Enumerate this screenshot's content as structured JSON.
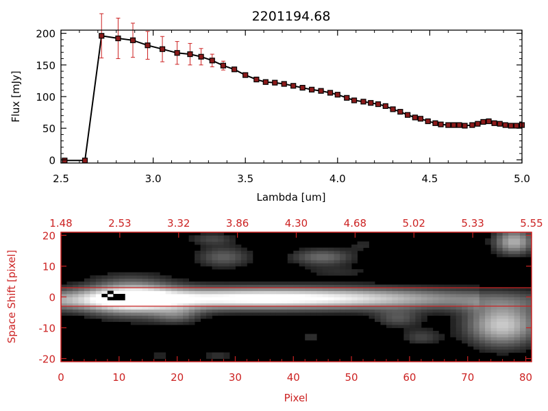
{
  "title": "2201194.68",
  "chart_data": [
    {
      "type": "line",
      "xlabel": "Lambda [um]",
      "ylabel": "Flux [mJy]",
      "xlim": [
        2.5,
        5.0
      ],
      "ylim": [
        -5,
        205
      ],
      "x_ticks": [
        "2.5",
        "3.0",
        "3.5",
        "4.0",
        "4.5",
        "5.0"
      ],
      "y_ticks": [
        "0",
        "50",
        "100",
        "150",
        "200"
      ],
      "grid": false,
      "colors": {
        "line": "#000000",
        "marker": "#8b1a1a",
        "error": "#cc1f1f"
      },
      "series": [
        {
          "x": [
            2.52,
            2.63,
            2.72,
            2.81,
            2.89,
            2.97,
            3.05,
            3.13,
            3.2,
            3.26,
            3.32,
            3.38,
            3.44,
            3.5,
            3.56,
            3.61,
            3.66,
            3.71,
            3.76,
            3.81,
            3.86,
            3.91,
            3.96,
            4.0,
            4.05,
            4.09,
            4.14,
            4.18,
            4.22,
            4.26,
            4.3,
            4.34,
            4.38,
            4.42,
            4.45,
            4.49,
            4.53,
            4.56,
            4.6,
            4.63,
            4.66,
            4.69,
            4.73,
            4.76,
            4.79,
            4.82,
            4.85,
            4.88,
            4.91,
            4.94,
            4.97,
            5.0
          ],
          "y": [
            -1,
            -1,
            196,
            192,
            189,
            181,
            175,
            169,
            167,
            163,
            157,
            149,
            143,
            134,
            127,
            123,
            122,
            120,
            117,
            114,
            111,
            109,
            106,
            103,
            98,
            94,
            92,
            90,
            88,
            85,
            80,
            76,
            71,
            67,
            65,
            61,
            58,
            56,
            55,
            55,
            55,
            54,
            55,
            57,
            60,
            61,
            58,
            57,
            55,
            54,
            54,
            55
          ],
          "err": [
            0,
            0,
            35,
            32,
            27,
            22,
            20,
            18,
            17,
            13,
            10,
            7,
            0,
            0,
            0,
            0,
            0,
            0,
            0,
            0,
            0,
            0,
            0,
            0,
            0,
            0,
            0,
            0,
            0,
            0,
            0,
            0,
            0,
            0,
            0,
            0,
            0,
            0,
            0,
            0,
            0,
            0,
            0,
            0,
            0,
            0,
            0,
            0,
            0,
            0,
            0,
            0
          ]
        }
      ]
    },
    {
      "type": "heatmap",
      "xlabel": "Pixel",
      "ylabel": "Space Shift [pixel]",
      "xlim": [
        0,
        81
      ],
      "ylim": [
        -21,
        21
      ],
      "x_ticks": [
        "0",
        "10",
        "20",
        "30",
        "40",
        "50",
        "60",
        "70",
        "80"
      ],
      "y_ticks": [
        "-20",
        "-10",
        "0",
        "10",
        "20"
      ],
      "top_ticks": [
        "1.48",
        "2.53",
        "3.32",
        "3.86",
        "4.30",
        "4.68",
        "5.02",
        "5.33",
        "5.55"
      ],
      "extraction_lines": [
        3,
        -3
      ],
      "colors": {
        "axes": "#cc2222",
        "background": "#000000"
      },
      "spectrum_trace": {
        "center": -1,
        "core_halfwidth": 3.5,
        "x_range": [
          0,
          81
        ]
      },
      "blobs": [
        {
          "x": 12,
          "y": 0,
          "sx": 5.5,
          "sy": 4.5,
          "amp": 0.65
        },
        {
          "x": 30,
          "y": 0,
          "sx": 14,
          "sy": 2.5,
          "amp": 0.45
        },
        {
          "x": 50,
          "y": 0,
          "sx": 14,
          "sy": 2.5,
          "amp": 0.35
        },
        {
          "x": 76,
          "y": -9,
          "sx": 4.5,
          "sy": 5,
          "amp": 0.75
        },
        {
          "x": 78,
          "y": 18,
          "sx": 2.5,
          "sy": 3,
          "amp": 0.65
        },
        {
          "x": 28,
          "y": 13,
          "sx": 3.5,
          "sy": 2.5,
          "amp": 0.35
        },
        {
          "x": 45,
          "y": 13,
          "sx": 4,
          "sy": 2,
          "amp": 0.4
        },
        {
          "x": 26,
          "y": 19,
          "sx": 3,
          "sy": 1.5,
          "amp": 0.25
        },
        {
          "x": 48,
          "y": 8,
          "sx": 5,
          "sy": 1.5,
          "amp": 0.15
        },
        {
          "x": 58,
          "y": -7,
          "sx": 3,
          "sy": 2,
          "amp": 0.3
        },
        {
          "x": 20,
          "y": -6,
          "sx": 3,
          "sy": 2,
          "amp": 0.3
        },
        {
          "x": 62,
          "y": -13,
          "sx": 2.5,
          "sy": 2,
          "amp": 0.25
        },
        {
          "x": 43,
          "y": -13,
          "sx": 1.5,
          "sy": 1,
          "amp": 0.2
        },
        {
          "x": 17,
          "y": -19,
          "sx": 2,
          "sy": 1,
          "amp": 0.15
        },
        {
          "x": 27,
          "y": -19,
          "sx": 2,
          "sy": 1,
          "amp": 0.2
        },
        {
          "x": 52,
          "y": 17,
          "sx": 2,
          "sy": 1.5,
          "amp": 0.15
        }
      ],
      "dark_pixels": [
        [
          8,
          1
        ],
        [
          7,
          0
        ],
        [
          9,
          0
        ],
        [
          10,
          -1
        ],
        [
          9,
          -1
        ],
        [
          8,
          -1
        ],
        [
          10,
          0
        ]
      ]
    }
  ]
}
